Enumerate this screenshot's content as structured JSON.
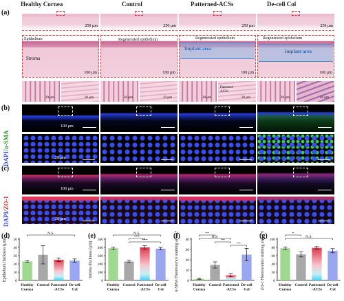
{
  "figure": {
    "columns": [
      "Healthy Cornea",
      "Control",
      "Patterned-ACSs",
      "De-cell Col"
    ],
    "panels": {
      "a": {
        "label": "(a)",
        "scale_top": "250 µm",
        "scale_mid": "100 µm",
        "scale_zoom": "20 µm",
        "epithelium": "Epithelium",
        "stroma": "Stroma",
        "regenerated": "Regenerated epithelium",
        "implant": "Implant area",
        "patterned_acss": "Patterned ACSs"
      },
      "b": {
        "label": "(b)",
        "stain_dapi": "DAPI/",
        "stain_marker": "α-SMA",
        "scale_top": "100 µm",
        "scale_bottom": "20 µm"
      },
      "c": {
        "label": "(c)",
        "stain_dapi": "DAPI/",
        "stain_marker": "ZO-1",
        "scale_top": "100 µm",
        "scale_bottom": "20 µm"
      }
    },
    "colors": {
      "healthy": "#9ed98f",
      "control": "#a8a8a8",
      "patterned": "#e0384a",
      "decell": "#9aa6ef"
    }
  },
  "chart_data": [
    {
      "label": "(d)",
      "type": "bar",
      "ylabel": "Epithelium thickness (µm)",
      "categories": [
        "Healthy Cornea",
        "Control",
        "Patterned -ACSs",
        "De-cell Col"
      ],
      "values": [
        23,
        31,
        25,
        24
      ],
      "errors": [
        1,
        11,
        2,
        2
      ],
      "ylim": [
        0,
        50
      ],
      "yticks": [
        "0",
        "10",
        "20",
        "30",
        "40",
        "50"
      ],
      "significance": [
        {
          "from": 0,
          "to": 3,
          "text": "N.S."
        }
      ]
    },
    {
      "label": "(e)",
      "type": "bar",
      "ylabel": "Stroma thickness (µm)",
      "categories": [
        "Healthy Cornea",
        "Control",
        "Patterned -ACSs",
        "De-cell Col"
      ],
      "values": [
        390,
        230,
        400,
        385
      ],
      "errors": [
        15,
        15,
        20,
        15
      ],
      "ylim": [
        0,
        500
      ],
      "yticks": [
        "0",
        "100",
        "200",
        "300",
        "400",
        "500"
      ],
      "significance": [
        {
          "from": 0,
          "to": 3,
          "text": "N.S."
        },
        {
          "from": 1,
          "to": 2,
          "text": "***"
        },
        {
          "from": 1,
          "to": 3,
          "text": "***"
        }
      ]
    },
    {
      "label": "(f)",
      "type": "bar",
      "ylabel": "α-SMA Fluorescence staining area (%)",
      "categories": [
        "Healthy Cornea",
        "Control",
        "Patterned -ACSs",
        "De-cell Col"
      ],
      "values": [
        1.5,
        15,
        5,
        25
      ],
      "errors": [
        0.5,
        3,
        1.5,
        6
      ],
      "ylim": [
        0,
        40
      ],
      "yticks": [
        "0",
        "10",
        "20",
        "30",
        "40"
      ],
      "significance": [
        {
          "from": 0,
          "to": 1,
          "text": "**"
        },
        {
          "from": 0,
          "to": 2,
          "text": "N.S."
        },
        {
          "from": 1,
          "to": 2,
          "text": "**"
        },
        {
          "from": 2,
          "to": 3,
          "text": "**"
        }
      ]
    },
    {
      "label": "(g)",
      "type": "bar",
      "ylabel": "ZO-1 Fluorescence staining area (%)",
      "categories": [
        "Healthy Cornea",
        "Control",
        "Patterned -ACSs",
        "De-cell Col"
      ],
      "values": [
        78,
        63,
        79,
        72
      ],
      "errors": [
        3,
        6,
        3,
        5
      ],
      "ylim": [
        0,
        100
      ],
      "yticks": [
        "0",
        "20",
        "40",
        "60",
        "80",
        "100"
      ],
      "significance": [
        {
          "from": 0,
          "to": 1,
          "text": "*"
        },
        {
          "from": 0,
          "to": 3,
          "text": "N.S."
        }
      ]
    }
  ]
}
